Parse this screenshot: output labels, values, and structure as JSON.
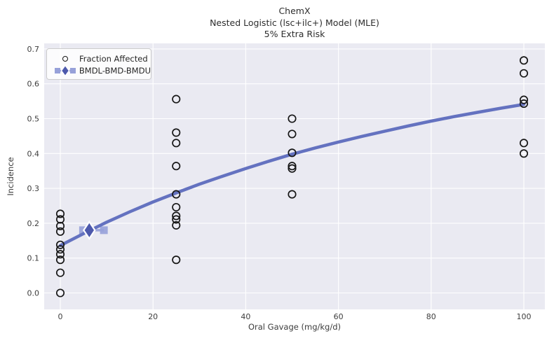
{
  "title": {
    "line1": "ChemX",
    "line2": "Nested Logistic (lsc+ilc+) Model (MLE)",
    "line3": "5% Extra Risk"
  },
  "axes": {
    "xlabel": "Oral Gavage (mg/kg/d)",
    "ylabel": "Incidence",
    "x_tick_labels": [
      "0",
      "20",
      "40",
      "60",
      "80",
      "100"
    ],
    "x_tick_values": [
      0,
      20,
      40,
      60,
      80,
      100
    ],
    "y_tick_labels": [
      "0.0",
      "0.1",
      "0.2",
      "0.3",
      "0.4",
      "0.5",
      "0.6",
      "0.7"
    ],
    "y_tick_values": [
      0,
      0.1,
      0.2,
      0.3,
      0.4,
      0.5,
      0.6,
      0.7
    ]
  },
  "legend": {
    "items": [
      {
        "label": "Fraction Affected",
        "marker": "open-circle"
      },
      {
        "label": "BMDL-BMD-BMDU",
        "marker": "bmd-interval"
      }
    ]
  },
  "chart_data": {
    "type": "scatter",
    "title": "ChemX / Nested Logistic (lsc+ilc+) Model (MLE) / 5% Extra Risk",
    "xlabel": "Oral Gavage (mg/kg/d)",
    "ylabel": "Incidence",
    "xlim": [
      -3.5,
      104.5
    ],
    "ylim": [
      -0.047,
      0.716
    ],
    "grid": true,
    "legend_position": "upper left",
    "series": [
      {
        "name": "Fraction Affected",
        "type": "scatter",
        "marker": "open-circle",
        "groups": [
          {
            "dose": 0,
            "fractions": [
              0.227,
              0.211,
              0.192,
              0.176,
              0.138,
              0.125,
              0.111,
              0.095,
              0.058,
              0.0
            ]
          },
          {
            "dose": 25,
            "fractions": [
              0.556,
              0.46,
              0.43,
              0.364,
              0.283,
              0.246,
              0.221,
              0.211,
              0.194,
              0.095
            ]
          },
          {
            "dose": 50,
            "fractions": [
              0.5,
              0.456,
              0.402,
              0.364,
              0.357,
              0.283
            ]
          },
          {
            "dose": 100,
            "fractions": [
              0.667,
              0.63,
              0.554,
              0.543,
              0.43,
              0.4
            ]
          }
        ]
      },
      {
        "name": "Model (MLE)",
        "type": "line",
        "points": [
          [
            0,
            0.136
          ],
          [
            5,
            0.17
          ],
          [
            10,
            0.203
          ],
          [
            15,
            0.233
          ],
          [
            20,
            0.261
          ],
          [
            25,
            0.287
          ],
          [
            30,
            0.312
          ],
          [
            35,
            0.335
          ],
          [
            40,
            0.357
          ],
          [
            45,
            0.378
          ],
          [
            50,
            0.398
          ],
          [
            55,
            0.416
          ],
          [
            60,
            0.433
          ],
          [
            65,
            0.449
          ],
          [
            70,
            0.464
          ],
          [
            75,
            0.479
          ],
          [
            80,
            0.493
          ],
          [
            85,
            0.506
          ],
          [
            90,
            0.518
          ],
          [
            95,
            0.53
          ],
          [
            100,
            0.541
          ]
        ]
      },
      {
        "name": "BMDL-BMD-BMDU",
        "type": "interval",
        "bmdl": 4.9,
        "bmd": 6.25,
        "bmdu": 9.4,
        "response": 0.18
      }
    ]
  },
  "colors": {
    "figure_bg": "#ffffff",
    "plot_bg": "#eaeaf2",
    "grid": "#ffffff",
    "curve": "#6472c0",
    "bmd_diamond": "#4d59ac",
    "bmd_interval": "#97a1d9",
    "scatter_stroke": "#161616",
    "tick_text": "#3d3d3d",
    "title_text": "#2d2d2d",
    "legend_border": "#cccccc"
  }
}
